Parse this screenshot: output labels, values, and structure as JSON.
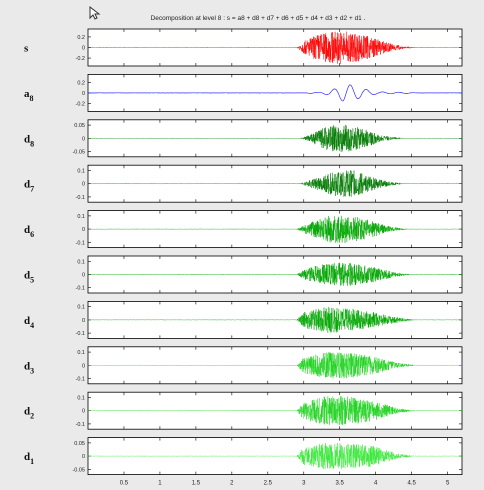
{
  "colors": {
    "figure_bg": "#eaeaea",
    "axes_bg": "#ffffff",
    "signal": "#ff0000",
    "approx": "#3030ff",
    "detail_dark": "#007a00",
    "detail_mid": "#00a600",
    "detail_light": "#1fd21f",
    "detail_lightest": "#3ae83a"
  },
  "icons": {
    "cursor": "cursor-arrow-icon"
  },
  "chart_data": {
    "type": "line",
    "title": "Decomposition at level 8 : s = a8 + d8 + d7 + d6 + d5 + d4 + d3 + d2 + d1 .",
    "xlabel": "",
    "xlim": [
      0,
      5.2
    ],
    "xticks": [
      "0.5",
      "1",
      "1.5",
      "2",
      "2.5",
      "3",
      "3.5",
      "4",
      "4.5",
      "5"
    ],
    "grid": false,
    "legend": "none",
    "series": [
      {
        "name": "s",
        "sub": "",
        "ylim": [
          -0.35,
          0.35
        ],
        "yticks": [
          "0.2",
          "0",
          "-0.2"
        ],
        "envelope": [
          [
            0,
            0
          ],
          [
            2.9,
            0
          ],
          [
            3.0,
            0.12
          ],
          [
            3.2,
            0.26
          ],
          [
            3.45,
            0.32
          ],
          [
            3.65,
            0.3
          ],
          [
            3.9,
            0.22
          ],
          [
            4.1,
            0.12
          ],
          [
            4.4,
            0.02
          ],
          [
            4.6,
            0
          ]
        ],
        "color_key": "signal"
      },
      {
        "name": "a",
        "sub": "8",
        "ylim": [
          -0.35,
          0.35
        ],
        "yticks": [
          "0.2",
          "0",
          "-0.2"
        ],
        "envelope": [
          [
            0,
            0
          ],
          [
            3.0,
            0
          ],
          [
            3.2,
            0.03
          ],
          [
            3.45,
            0.12
          ],
          [
            3.55,
            0.18
          ],
          [
            3.75,
            0.12
          ],
          [
            4.0,
            0.06
          ],
          [
            4.3,
            0.02
          ],
          [
            4.6,
            0
          ]
        ],
        "color_key": "approx"
      },
      {
        "name": "d",
        "sub": "8",
        "ylim": [
          -0.07,
          0.07
        ],
        "yticks": [
          "0.05",
          "0",
          "-0.05"
        ],
        "envelope": [
          [
            0,
            0
          ],
          [
            2.95,
            0
          ],
          [
            3.1,
            0.015
          ],
          [
            3.35,
            0.05
          ],
          [
            3.6,
            0.052
          ],
          [
            3.85,
            0.035
          ],
          [
            4.1,
            0.01
          ],
          [
            4.4,
            0
          ]
        ],
        "color_key": "detail_dark"
      },
      {
        "name": "d",
        "sub": "7",
        "ylim": [
          -0.14,
          0.14
        ],
        "yticks": [
          "0.1",
          "0",
          "-0.1"
        ],
        "envelope": [
          [
            0,
            0
          ],
          [
            2.95,
            0
          ],
          [
            3.1,
            0.03
          ],
          [
            3.4,
            0.09
          ],
          [
            3.65,
            0.11
          ],
          [
            3.9,
            0.06
          ],
          [
            4.2,
            0.015
          ],
          [
            4.4,
            0
          ]
        ],
        "color_key": "detail_dark"
      },
      {
        "name": "d",
        "sub": "6",
        "ylim": [
          -0.14,
          0.14
        ],
        "yticks": [
          "0.1",
          "0",
          "-0.1"
        ],
        "envelope": [
          [
            0,
            0
          ],
          [
            2.9,
            0
          ],
          [
            3.05,
            0.04
          ],
          [
            3.35,
            0.1
          ],
          [
            3.6,
            0.11
          ],
          [
            3.9,
            0.07
          ],
          [
            4.2,
            0.02
          ],
          [
            4.45,
            0
          ]
        ],
        "color_key": "detail_mid"
      },
      {
        "name": "d",
        "sub": "5",
        "ylim": [
          -0.14,
          0.14
        ],
        "yticks": [
          "0.1",
          "0",
          "-0.1"
        ],
        "envelope": [
          [
            0,
            0
          ],
          [
            2.9,
            0
          ],
          [
            3.05,
            0.05
          ],
          [
            3.35,
            0.09
          ],
          [
            3.6,
            0.09
          ],
          [
            3.95,
            0.06
          ],
          [
            4.25,
            0.02
          ],
          [
            4.5,
            0
          ]
        ],
        "color_key": "detail_mid"
      },
      {
        "name": "d",
        "sub": "4",
        "ylim": [
          -0.14,
          0.14
        ],
        "yticks": [
          "0.1",
          "0",
          "-0.1"
        ],
        "envelope": [
          [
            0,
            0
          ],
          [
            2.9,
            0
          ],
          [
            3.0,
            0.06
          ],
          [
            3.3,
            0.1
          ],
          [
            3.6,
            0.09
          ],
          [
            3.95,
            0.06
          ],
          [
            4.3,
            0.02
          ],
          [
            4.55,
            0
          ]
        ],
        "color_key": "detail_mid"
      },
      {
        "name": "d",
        "sub": "3",
        "ylim": [
          -0.14,
          0.14
        ],
        "yticks": [
          "0.1",
          "0",
          "-0.1"
        ],
        "envelope": [
          [
            0,
            0
          ],
          [
            2.9,
            0
          ],
          [
            3.0,
            0.06
          ],
          [
            3.3,
            0.1
          ],
          [
            3.6,
            0.1
          ],
          [
            3.95,
            0.07
          ],
          [
            4.3,
            0.02
          ],
          [
            4.55,
            0
          ]
        ],
        "color_key": "detail_light"
      },
      {
        "name": "d",
        "sub": "2",
        "ylim": [
          -0.14,
          0.14
        ],
        "yticks": [
          "0.1",
          "0",
          "-0.1"
        ],
        "envelope": [
          [
            0,
            0
          ],
          [
            2.9,
            0
          ],
          [
            3.0,
            0.07
          ],
          [
            3.3,
            0.11
          ],
          [
            3.6,
            0.11
          ],
          [
            3.95,
            0.08
          ],
          [
            4.3,
            0.02
          ],
          [
            4.55,
            0
          ]
        ],
        "color_key": "detail_light"
      },
      {
        "name": "d",
        "sub": "1",
        "ylim": [
          -0.07,
          0.07
        ],
        "yticks": [
          "0.05",
          "0",
          "-0.05"
        ],
        "envelope": [
          [
            0,
            0
          ],
          [
            2.9,
            0
          ],
          [
            3.0,
            0.035
          ],
          [
            3.3,
            0.05
          ],
          [
            3.6,
            0.05
          ],
          [
            3.95,
            0.04
          ],
          [
            4.3,
            0.01
          ],
          [
            4.55,
            0
          ]
        ],
        "color_key": "detail_lightest"
      }
    ]
  }
}
